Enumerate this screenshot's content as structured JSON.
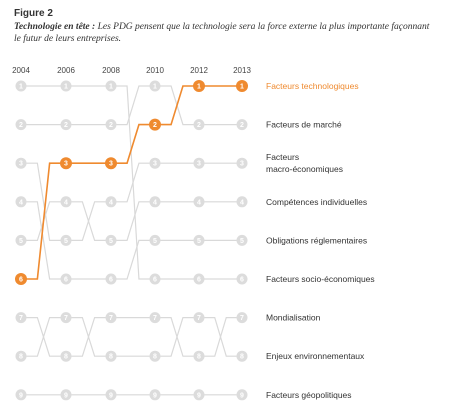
{
  "figure": {
    "label": "Figure 2",
    "caption_lead": "Technologie en tête :",
    "caption_text": "Les PDG pensent que la technologie sera la force externe la plus importante façonnant le futur de leurs entreprises."
  },
  "colors": {
    "highlight": "#ef8a2f",
    "muted_line": "#d9d9d9",
    "muted_node": "#dcdcdc",
    "text": "#333333"
  },
  "chart_data": {
    "type": "line",
    "subtype": "bump",
    "x": [
      "2004",
      "2006",
      "2008",
      "2010",
      "2012",
      "2013"
    ],
    "ylim": [
      9,
      1
    ],
    "series": [
      {
        "name": "Facteurs technologiques",
        "values": [
          6,
          3,
          3,
          2,
          1,
          1
        ],
        "highlight": true
      },
      {
        "name": "Facteurs de marché",
        "values": [
          2,
          2,
          2,
          1,
          2,
          2
        ]
      },
      {
        "name": "Facteurs macro-économiques",
        "values": [
          3,
          5,
          4,
          3,
          3,
          3
        ]
      },
      {
        "name": "Compétences individuelles",
        "values": [
          5,
          4,
          5,
          4,
          4,
          4
        ]
      },
      {
        "name": "Obligations réglementaires",
        "values": [
          4,
          6,
          6,
          5,
          5,
          5
        ]
      },
      {
        "name": "Facteurs socio-économiques",
        "values": [
          1,
          1,
          1,
          6,
          6,
          6
        ]
      },
      {
        "name": "Mondialisation",
        "values": [
          7,
          8,
          7,
          7,
          8,
          7
        ]
      },
      {
        "name": "Enjeux environnementaux",
        "values": [
          8,
          7,
          8,
          8,
          7,
          8
        ]
      },
      {
        "name": "Facteurs géopolitiques",
        "values": [
          9,
          9,
          9,
          9,
          9,
          9
        ]
      }
    ],
    "legend_labels": [
      [
        "Facteurs technologiques"
      ],
      [
        "Facteurs de marché"
      ],
      [
        "Facteurs",
        "macro-économiques"
      ],
      [
        "Compétences individuelles"
      ],
      [
        "Obligations réglementaires"
      ],
      [
        "Facteurs socio-économiques"
      ],
      [
        "Mondialisation"
      ],
      [
        "Enjeux environnementaux"
      ],
      [
        "Facteurs géopolitiques"
      ]
    ],
    "legend_placement": "right",
    "grid": false
  }
}
